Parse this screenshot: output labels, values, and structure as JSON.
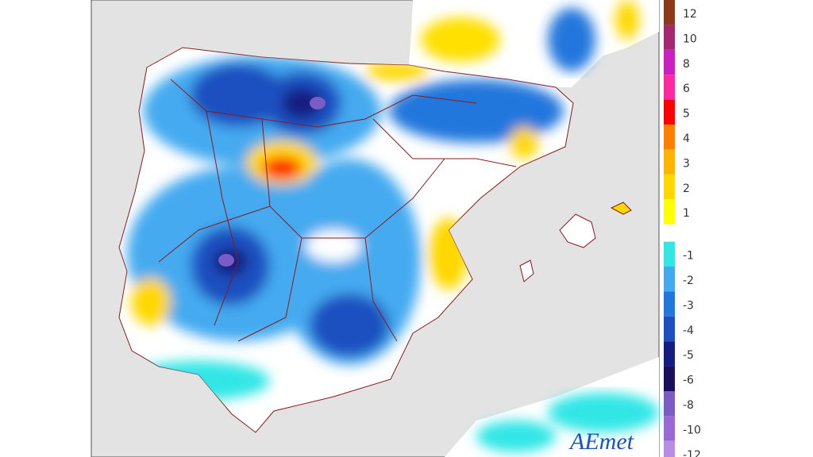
{
  "legend": {
    "items": [
      {
        "value": 12,
        "color": "#8b3a1a"
      },
      {
        "value": 10,
        "color": "#a3286f"
      },
      {
        "value": 8,
        "color": "#cc1fc0"
      },
      {
        "value": 6,
        "color": "#ff2aa0"
      },
      {
        "value": 5,
        "color": "#ff0000"
      },
      {
        "value": 4,
        "color": "#ff7f00"
      },
      {
        "value": 3,
        "color": "#ffb400"
      },
      {
        "value": 2,
        "color": "#ffd800"
      },
      {
        "value": 1,
        "color": "#ffff00"
      },
      {
        "value": -1,
        "color": "#33e6e6"
      },
      {
        "value": -2,
        "color": "#44aaf0"
      },
      {
        "value": -3,
        "color": "#2277dd"
      },
      {
        "value": -4,
        "color": "#1e4fc0"
      },
      {
        "value": -5,
        "color": "#141e80"
      },
      {
        "value": -6,
        "color": "#1a0f5a"
      },
      {
        "value": -8,
        "color": "#7a5cc4"
      },
      {
        "value": -10,
        "color": "#9a6ad4"
      },
      {
        "value": -12,
        "color": "#b88ee2"
      }
    ]
  },
  "logo": "AEmet"
}
